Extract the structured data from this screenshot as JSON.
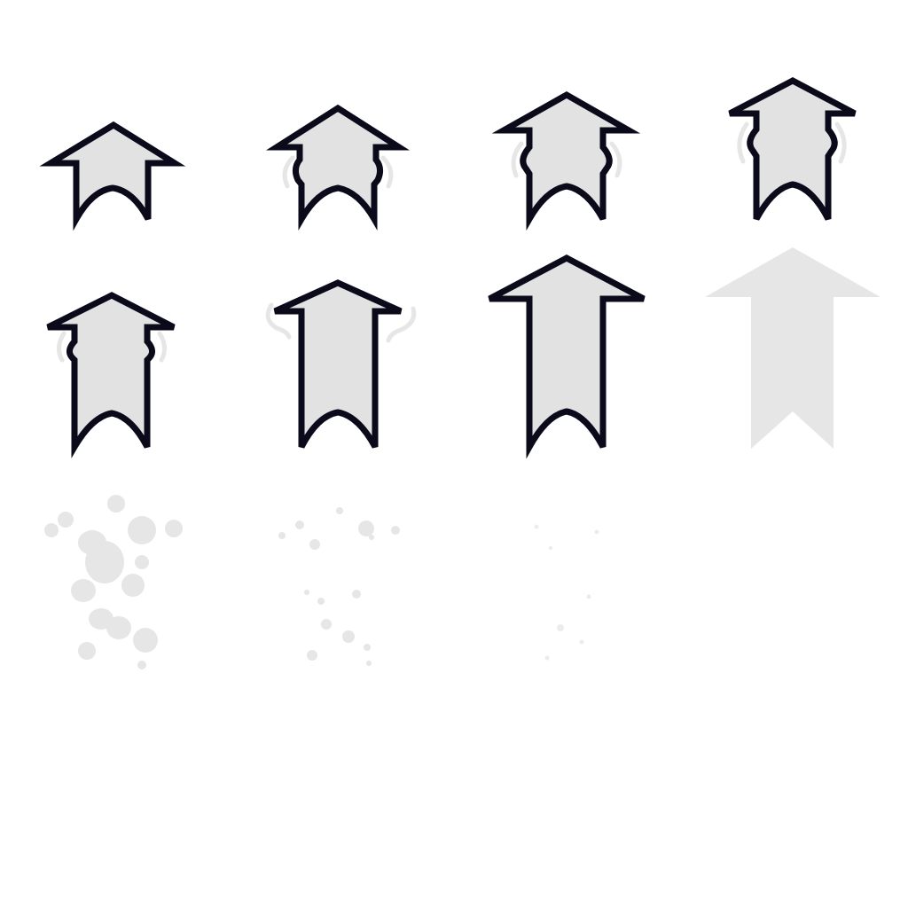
{
  "sprite_sheet": {
    "subject": "arrow-up",
    "frame_count": 11,
    "colors": {
      "background": "#ffffff",
      "fill": "#e2e2e2",
      "outline": "#0a0a1a",
      "ghost": "#e6e6e6"
    },
    "frames": [
      {
        "name": "arrow-frame-1",
        "state": "stretch",
        "stretch": 0.0
      },
      {
        "name": "arrow-frame-2",
        "state": "stretch",
        "stretch": 0.1
      },
      {
        "name": "arrow-frame-3",
        "state": "stretch",
        "stretch": 0.25
      },
      {
        "name": "arrow-frame-4",
        "state": "stretch",
        "stretch": 0.4
      },
      {
        "name": "arrow-frame-5",
        "state": "stretch",
        "stretch": 0.7
      },
      {
        "name": "arrow-frame-6",
        "state": "stretch",
        "stretch": 0.85
      },
      {
        "name": "arrow-frame-7",
        "state": "stretch",
        "stretch": 1.0
      },
      {
        "name": "arrow-frame-8",
        "state": "silhouette"
      },
      {
        "name": "particles-frame-9",
        "state": "burst",
        "density": 1.0
      },
      {
        "name": "particles-frame-10",
        "state": "burst",
        "density": 0.5
      },
      {
        "name": "particles-frame-11",
        "state": "burst",
        "density": 0.2
      }
    ]
  }
}
